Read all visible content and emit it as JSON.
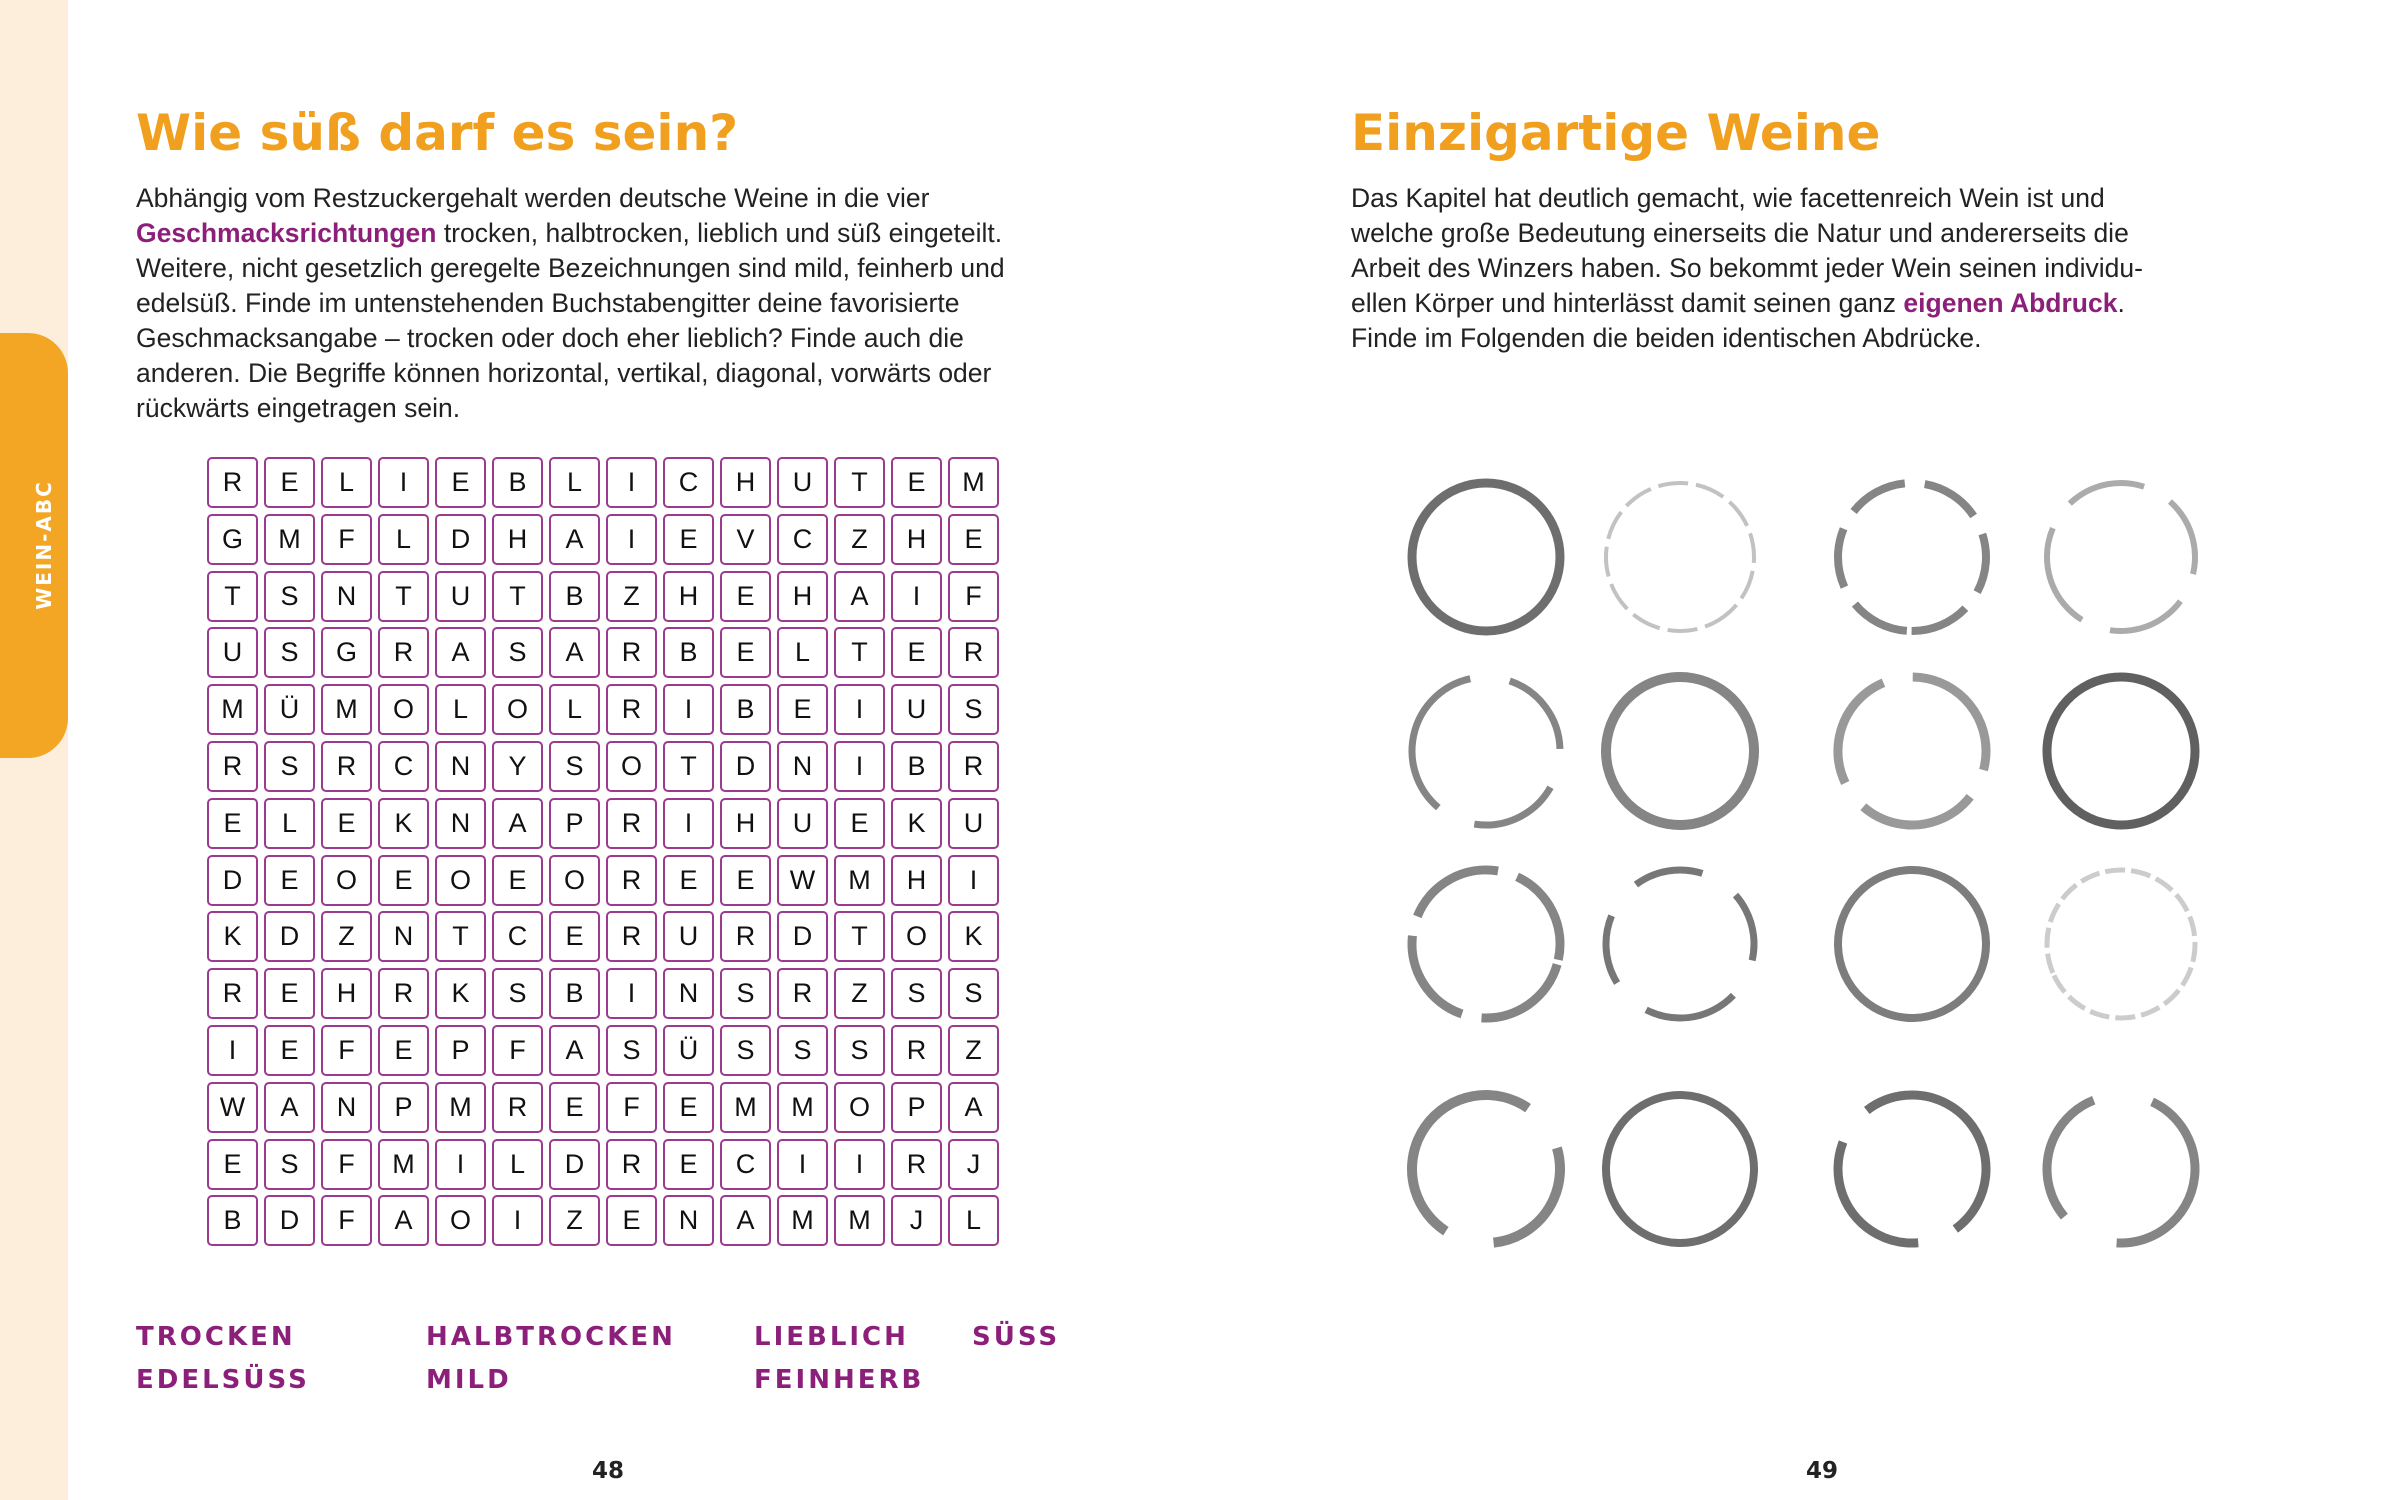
{
  "sidebar": {
    "label": "WEIN-ABC"
  },
  "left": {
    "title": "Wie süß darf es sein?",
    "paragraph": [
      [
        {
          "text": "Abhängig vom Restzuckergehalt werden deutsche Weine in die vier"
        }
      ],
      [
        {
          "text": "Geschmacksrichtungen",
          "bold": true
        },
        {
          "text": " trocken, halbtrocken, lieblich und süß eingeteilt."
        }
      ],
      [
        {
          "text": "Weitere, nicht gesetzlich geregelte Bezeichnungen sind mild, feinherb und"
        }
      ],
      [
        {
          "text": "edelsüß. Finde im untenstehenden Buchstabengitter deine favorisierte"
        }
      ],
      [
        {
          "text": "Geschmacksangabe – trocken oder doch eher lieblich? Finde auch die"
        }
      ],
      [
        {
          "text": "anderen. Die Begriffe können horizontal, vertikal, diagonal, vorwärts oder"
        }
      ],
      [
        {
          "text": "rückwärts eingetragen sein."
        }
      ]
    ],
    "grid": {
      "rows": [
        [
          "R",
          "E",
          "L",
          "I",
          "E",
          "B",
          "L",
          "I",
          "C",
          "H",
          "U",
          "T",
          "E",
          "M"
        ],
        [
          "G",
          "M",
          "F",
          "L",
          "D",
          "H",
          "A",
          "I",
          "E",
          "V",
          "C",
          "Z",
          "H",
          "E"
        ],
        [
          "T",
          "S",
          "N",
          "T",
          "U",
          "T",
          "B",
          "Z",
          "H",
          "E",
          "H",
          "A",
          "I",
          "F"
        ],
        [
          "U",
          "S",
          "G",
          "R",
          "A",
          "S",
          "A",
          "R",
          "B",
          "E",
          "L",
          "T",
          "E",
          "R"
        ],
        [
          "M",
          "Ü",
          "M",
          "O",
          "L",
          "O",
          "L",
          "R",
          "I",
          "B",
          "E",
          "I",
          "U",
          "S"
        ],
        [
          "R",
          "S",
          "R",
          "C",
          "N",
          "Y",
          "S",
          "O",
          "T",
          "D",
          "N",
          "I",
          "B",
          "R"
        ],
        [
          "E",
          "L",
          "E",
          "K",
          "N",
          "A",
          "P",
          "R",
          "I",
          "H",
          "U",
          "E",
          "K",
          "U"
        ],
        [
          "D",
          "E",
          "O",
          "E",
          "O",
          "E",
          "O",
          "R",
          "E",
          "E",
          "W",
          "M",
          "H",
          "I"
        ],
        [
          "K",
          "D",
          "Z",
          "N",
          "T",
          "C",
          "E",
          "R",
          "U",
          "R",
          "D",
          "T",
          "O",
          "K"
        ],
        [
          "R",
          "E",
          "H",
          "R",
          "K",
          "S",
          "B",
          "I",
          "N",
          "S",
          "R",
          "Z",
          "S",
          "S"
        ],
        [
          "I",
          "E",
          "F",
          "E",
          "P",
          "F",
          "A",
          "S",
          "Ü",
          "S",
          "S",
          "S",
          "R",
          "Z"
        ],
        [
          "W",
          "A",
          "N",
          "P",
          "M",
          "R",
          "E",
          "F",
          "E",
          "M",
          "M",
          "O",
          "P",
          "A"
        ],
        [
          "E",
          "S",
          "F",
          "M",
          "I",
          "L",
          "D",
          "R",
          "E",
          "C",
          "I",
          "I",
          "R",
          "J"
        ],
        [
          "B",
          "D",
          "F",
          "A",
          "O",
          "I",
          "Z",
          "E",
          "N",
          "A",
          "M",
          "M",
          "J",
          "L"
        ]
      ]
    },
    "words": [
      "TROCKEN",
      "HALBTROCKEN",
      "LIEBLICH",
      "SÜSS",
      "EDELSÜSS",
      "MILD",
      "FEINHERB"
    ],
    "page_number": "48"
  },
  "right": {
    "title": "Einzigartige Weine",
    "paragraph": [
      [
        {
          "text": "Das Kapitel hat deutlich gemacht, wie facettenreich Wein ist und"
        }
      ],
      [
        {
          "text": "welche große Bedeutung einerseits die Natur und andererseits die"
        }
      ],
      [
        {
          "text": "Arbeit des Winzers haben. So bekommt jeder Wein seinen individu-"
        }
      ],
      [
        {
          "text": "ellen Körper und hinterlässt damit seinen ganz "
        },
        {
          "text": "eigenen Abdruck",
          "bold": true
        },
        {
          "text": "."
        }
      ],
      [
        {
          "text": "Finde im Folgenden die beiden identischen Abdrücke."
        }
      ]
    ],
    "page_number": "49"
  }
}
